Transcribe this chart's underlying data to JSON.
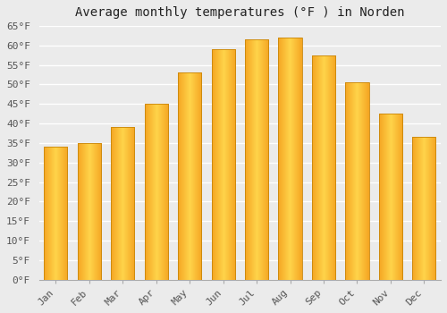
{
  "title": "Average monthly temperatures (°F ) in Norden",
  "months": [
    "Jan",
    "Feb",
    "Mar",
    "Apr",
    "May",
    "Jun",
    "Jul",
    "Aug",
    "Sep",
    "Oct",
    "Nov",
    "Dec"
  ],
  "values": [
    34,
    35,
    39,
    45,
    53,
    59,
    61.5,
    62,
    57.5,
    50.5,
    42.5,
    36.5
  ],
  "bar_color_center": "#FFD44A",
  "bar_color_edge": "#F5A623",
  "bar_edge_color": "#C8860A",
  "ylim": [
    0,
    65
  ],
  "yticks": [
    0,
    5,
    10,
    15,
    20,
    25,
    30,
    35,
    40,
    45,
    50,
    55,
    60,
    65
  ],
  "ytick_labels": [
    "0°F",
    "5°F",
    "10°F",
    "15°F",
    "20°F",
    "25°F",
    "30°F",
    "35°F",
    "40°F",
    "45°F",
    "50°F",
    "55°F",
    "60°F",
    "65°F"
  ],
  "background_color": "#ebebeb",
  "grid_color": "#ffffff",
  "title_fontsize": 10,
  "tick_fontsize": 8,
  "bar_width": 0.7
}
